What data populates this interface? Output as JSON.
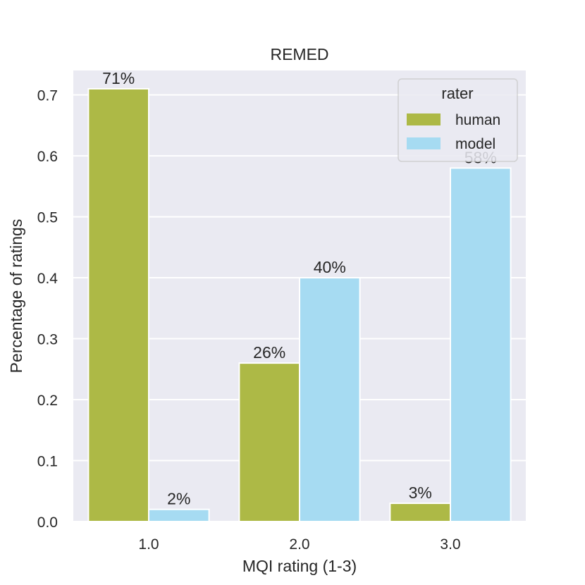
{
  "chart_data": {
    "type": "bar",
    "title": "REMED",
    "xlabel": "MQI rating (1-3)",
    "ylabel": "Percentage of ratings",
    "categories": [
      "1.0",
      "2.0",
      "3.0"
    ],
    "ylim": [
      0,
      0.74
    ],
    "yticks": [
      0.0,
      0.1,
      0.2,
      0.3,
      0.4,
      0.5,
      0.6,
      0.7
    ],
    "ytick_labels": [
      "0.0",
      "0.1",
      "0.2",
      "0.3",
      "0.4",
      "0.5",
      "0.6",
      "0.7"
    ],
    "grid": true,
    "legend": {
      "title": "rater",
      "placement": "top-right"
    },
    "series": [
      {
        "name": "human",
        "color": "#adb946",
        "values": [
          0.71,
          0.26,
          0.03
        ],
        "labels": [
          "71%",
          "26%",
          "3%"
        ]
      },
      {
        "name": "model",
        "color": "#a6dbf2",
        "values": [
          0.02,
          0.4,
          0.58
        ],
        "labels": [
          "2%",
          "40%",
          "58%"
        ]
      }
    ]
  }
}
